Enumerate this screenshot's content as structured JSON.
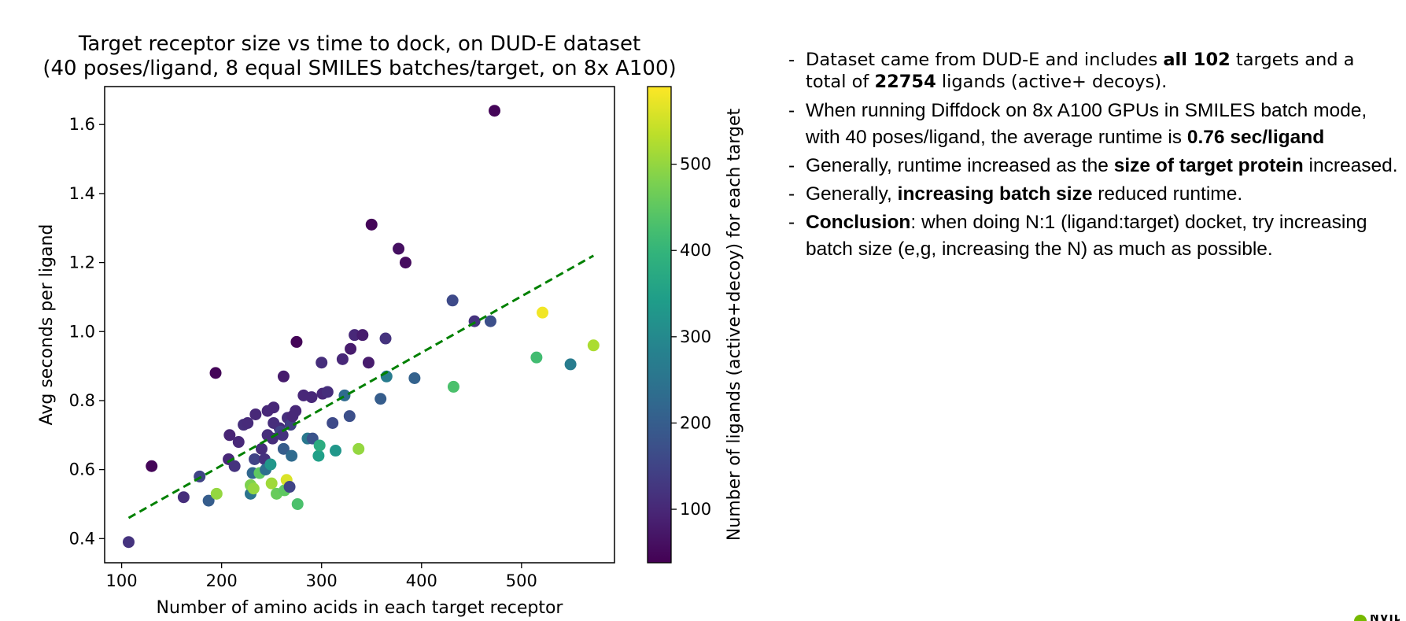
{
  "chart_data": {
    "type": "scatter",
    "title": "Target receptor size vs time to dock, on DUD-E dataset",
    "subtitle": "(40 poses/ligand, 8 equal SMILES batches/target, on 8x A100)",
    "xlabel": "Number of amino acids in each target receptor",
    "ylabel": "Avg seconds per ligand",
    "colorbar_label": "Number of ligands (active+decoy) for each target",
    "xlim": [
      83,
      593
    ],
    "ylim": [
      0.33,
      1.71
    ],
    "xticks": [
      100,
      200,
      300,
      400,
      500
    ],
    "yticks": [
      0.4,
      0.6,
      0.8,
      1.0,
      1.2,
      1.4,
      1.6
    ],
    "xtick_labels": [
      "100",
      "200",
      "300",
      "400",
      "500"
    ],
    "ytick_labels": [
      "0.4",
      "0.6",
      "0.8",
      "1.0",
      "1.2",
      "1.4",
      "1.6"
    ],
    "colorbar_range": [
      38,
      590
    ],
    "colorbar_ticks": [
      100,
      200,
      300,
      400,
      500
    ],
    "colorbar_tick_labels": [
      "100",
      "200",
      "300",
      "400",
      "500"
    ],
    "colormap": "viridis",
    "grid": false,
    "trendline": {
      "x": [
        107,
        572
      ],
      "y": [
        0.46,
        1.22
      ],
      "color": "#008000",
      "style": "dashed"
    },
    "points": [
      {
        "x": 107,
        "y": 0.39,
        "c": 120
      },
      {
        "x": 130,
        "y": 0.61,
        "c": 45
      },
      {
        "x": 162,
        "y": 0.52,
        "c": 110
      },
      {
        "x": 178,
        "y": 0.58,
        "c": 150
      },
      {
        "x": 187,
        "y": 0.51,
        "c": 200
      },
      {
        "x": 194,
        "y": 0.88,
        "c": 45
      },
      {
        "x": 195,
        "y": 0.53,
        "c": 500
      },
      {
        "x": 207,
        "y": 0.63,
        "c": 100
      },
      {
        "x": 208,
        "y": 0.7,
        "c": 95
      },
      {
        "x": 213,
        "y": 0.61,
        "c": 120
      },
      {
        "x": 217,
        "y": 0.68,
        "c": 100
      },
      {
        "x": 222,
        "y": 0.73,
        "c": 110
      },
      {
        "x": 226,
        "y": 0.735,
        "c": 105
      },
      {
        "x": 229,
        "y": 0.53,
        "c": 250
      },
      {
        "x": 229,
        "y": 0.555,
        "c": 480
      },
      {
        "x": 231,
        "y": 0.59,
        "c": 220
      },
      {
        "x": 232,
        "y": 0.545,
        "c": 500
      },
      {
        "x": 233,
        "y": 0.63,
        "c": 150
      },
      {
        "x": 234,
        "y": 0.76,
        "c": 100
      },
      {
        "x": 238,
        "y": 0.59,
        "c": 450
      },
      {
        "x": 240,
        "y": 0.66,
        "c": 110
      },
      {
        "x": 243,
        "y": 0.63,
        "c": 120
      },
      {
        "x": 244,
        "y": 0.6,
        "c": 240
      },
      {
        "x": 246,
        "y": 0.7,
        "c": 110
      },
      {
        "x": 246,
        "y": 0.77,
        "c": 100
      },
      {
        "x": 249,
        "y": 0.615,
        "c": 330
      },
      {
        "x": 250,
        "y": 0.56,
        "c": 510
      },
      {
        "x": 251,
        "y": 0.69,
        "c": 110
      },
      {
        "x": 252,
        "y": 0.78,
        "c": 100
      },
      {
        "x": 252,
        "y": 0.735,
        "c": 110
      },
      {
        "x": 255,
        "y": 0.53,
        "c": 460
      },
      {
        "x": 258,
        "y": 0.72,
        "c": 110
      },
      {
        "x": 259,
        "y": 0.71,
        "c": 150
      },
      {
        "x": 261,
        "y": 0.7,
        "c": 120
      },
      {
        "x": 262,
        "y": 0.87,
        "c": 80
      },
      {
        "x": 262,
        "y": 0.66,
        "c": 200
      },
      {
        "x": 263,
        "y": 0.54,
        "c": 450
      },
      {
        "x": 265,
        "y": 0.57,
        "c": 560
      },
      {
        "x": 266,
        "y": 0.75,
        "c": 110
      },
      {
        "x": 268,
        "y": 0.55,
        "c": 150
      },
      {
        "x": 269,
        "y": 0.73,
        "c": 140
      },
      {
        "x": 270,
        "y": 0.64,
        "c": 230
      },
      {
        "x": 271,
        "y": 0.755,
        "c": 100
      },
      {
        "x": 274,
        "y": 0.77,
        "c": 100
      },
      {
        "x": 275,
        "y": 0.97,
        "c": 45
      },
      {
        "x": 276,
        "y": 0.5,
        "c": 430
      },
      {
        "x": 282,
        "y": 0.815,
        "c": 100
      },
      {
        "x": 286,
        "y": 0.69,
        "c": 260
      },
      {
        "x": 290,
        "y": 0.81,
        "c": 100
      },
      {
        "x": 291,
        "y": 0.69,
        "c": 180
      },
      {
        "x": 297,
        "y": 0.64,
        "c": 350
      },
      {
        "x": 298,
        "y": 0.67,
        "c": 380
      },
      {
        "x": 300,
        "y": 0.91,
        "c": 110
      },
      {
        "x": 301,
        "y": 0.82,
        "c": 100
      },
      {
        "x": 306,
        "y": 0.825,
        "c": 110
      },
      {
        "x": 311,
        "y": 0.735,
        "c": 160
      },
      {
        "x": 314,
        "y": 0.655,
        "c": 330
      },
      {
        "x": 321,
        "y": 0.92,
        "c": 100
      },
      {
        "x": 323,
        "y": 0.815,
        "c": 230
      },
      {
        "x": 328,
        "y": 0.755,
        "c": 170
      },
      {
        "x": 329,
        "y": 0.95,
        "c": 80
      },
      {
        "x": 333,
        "y": 0.99,
        "c": 100
      },
      {
        "x": 337,
        "y": 0.66,
        "c": 500
      },
      {
        "x": 341,
        "y": 0.99,
        "c": 80
      },
      {
        "x": 347,
        "y": 0.91,
        "c": 80
      },
      {
        "x": 350,
        "y": 1.31,
        "c": 45
      },
      {
        "x": 359,
        "y": 0.805,
        "c": 200
      },
      {
        "x": 364,
        "y": 0.98,
        "c": 120
      },
      {
        "x": 365,
        "y": 0.87,
        "c": 270
      },
      {
        "x": 377,
        "y": 1.24,
        "c": 60
      },
      {
        "x": 384,
        "y": 1.2,
        "c": 55
      },
      {
        "x": 393,
        "y": 0.865,
        "c": 210
      },
      {
        "x": 431,
        "y": 1.09,
        "c": 160
      },
      {
        "x": 432,
        "y": 0.84,
        "c": 430
      },
      {
        "x": 453,
        "y": 1.03,
        "c": 120
      },
      {
        "x": 469,
        "y": 1.03,
        "c": 170
      },
      {
        "x": 473,
        "y": 1.64,
        "c": 45
      },
      {
        "x": 515,
        "y": 0.925,
        "c": 420
      },
      {
        "x": 521,
        "y": 1.055,
        "c": 580
      },
      {
        "x": 549,
        "y": 0.905,
        "c": 270
      },
      {
        "x": 572,
        "y": 0.96,
        "c": 520
      }
    ]
  },
  "notes": {
    "items": [
      {
        "parts": [
          {
            "t": "Dataset came from DUD-E and includes ",
            "b": false
          },
          {
            "t": "all 102",
            "b": true
          },
          {
            "t": " targets and a total of ",
            "b": false
          },
          {
            "t": "22754",
            "b": true
          },
          {
            "t": " ligands (active+ decoys).",
            "b": false
          }
        ]
      },
      {
        "parts": [
          {
            "t": "When running Diffdock on 8x A100 GPUs in SMILES batch mode, with 40 poses/ligand, the average runtime is ",
            "b": false
          },
          {
            "t": "0.76 sec/ligand",
            "b": true
          }
        ]
      },
      {
        "parts": [
          {
            "t": "Generally, runtime increased as the ",
            "b": false
          },
          {
            "t": "size of target protein",
            "b": true
          },
          {
            "t": " increased.",
            "b": false
          }
        ]
      },
      {
        "parts": [
          {
            "t": "Generally, ",
            "b": false
          },
          {
            "t": "increasing batch size",
            "b": true
          },
          {
            "t": " reduced runtime.",
            "b": false
          }
        ]
      },
      {
        "parts": [
          {
            "t": "Conclusion",
            "b": true
          },
          {
            "t": ": when doing N:1 (ligand:target) docket, try increasing batch size (e,g, increasing the N) as much as possible.",
            "b": false
          }
        ]
      }
    ]
  },
  "logo": {
    "name": "nvidia-logo",
    "text": "NVIDIA",
    "color": "#76b900"
  }
}
